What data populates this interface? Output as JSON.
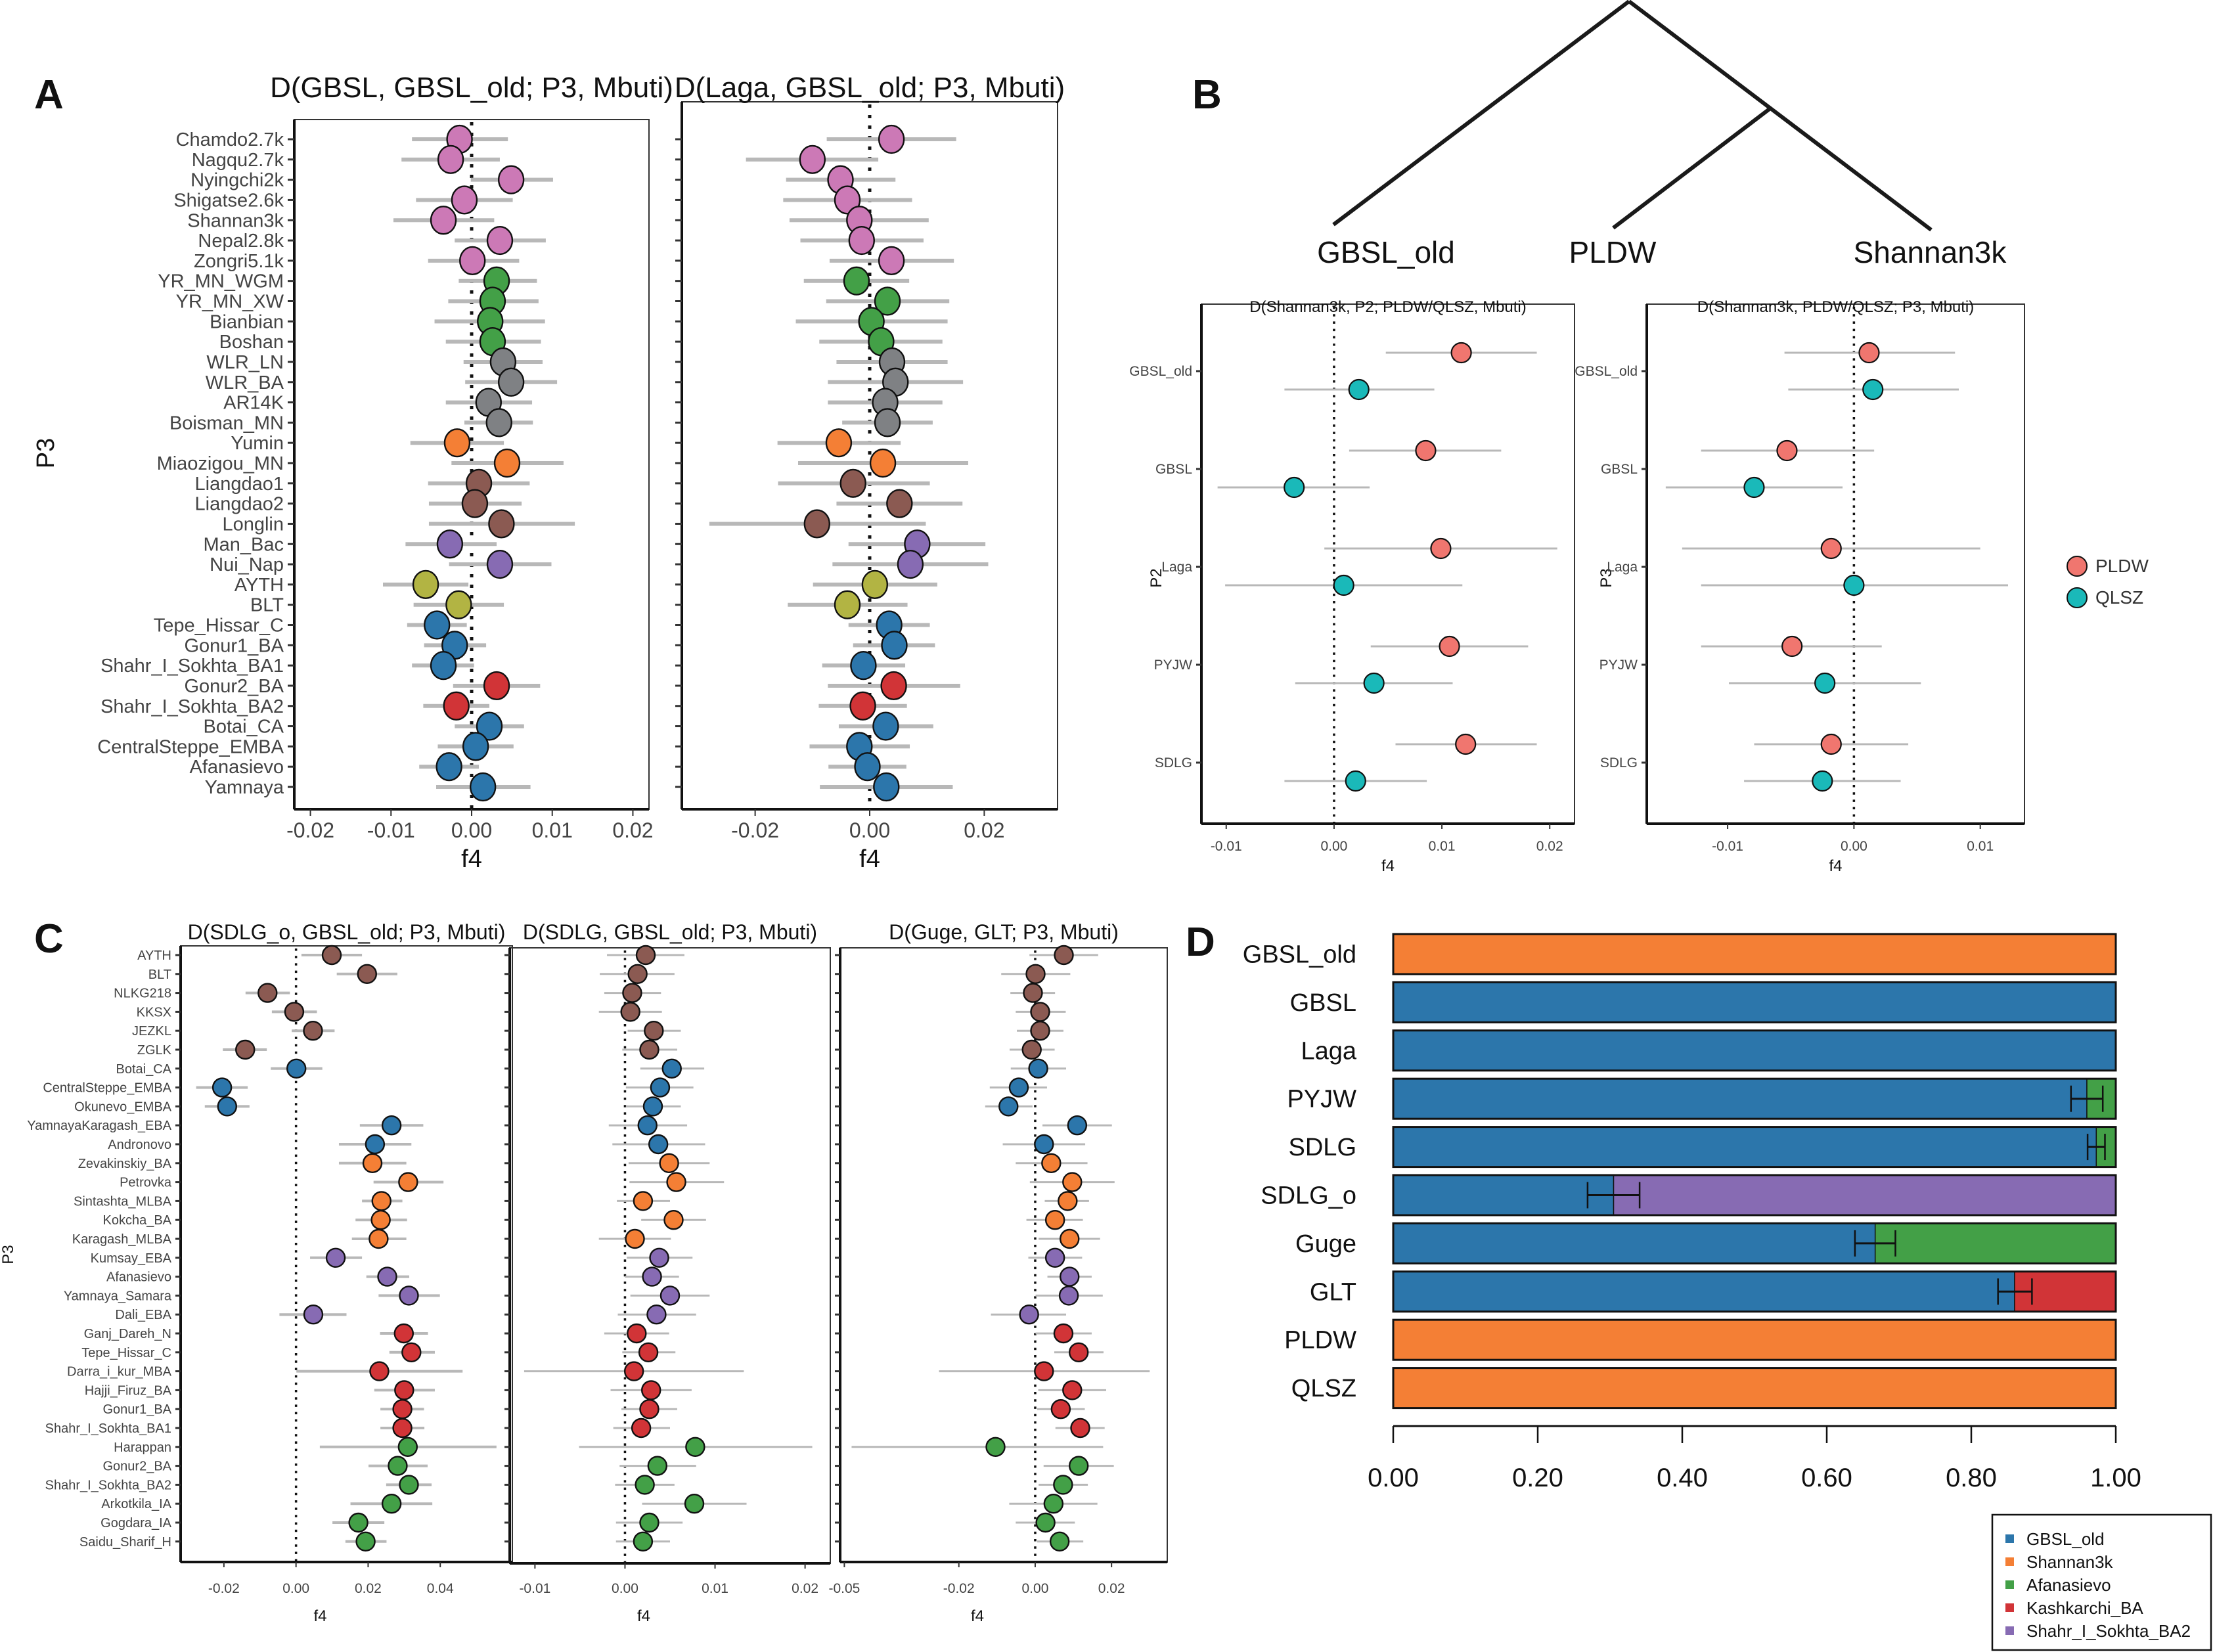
{
  "figure": {
    "panel_letters": [
      "A",
      "B",
      "C",
      "D"
    ],
    "colors": {
      "pink": "#cc79b6",
      "green": "#43a047",
      "grey": "#7f8184",
      "orange": "#f47f35",
      "brown": "#8b5a52",
      "purple": "#876bb3",
      "olive": "#b2b443",
      "blue": "#2c76ab",
      "red": "#d13437",
      "salmon": "#f0766f",
      "teal": "#1ab9b9",
      "errorbar": "#b8b8b8"
    }
  },
  "chart_data": [
    {
      "id": "A1",
      "type": "scatter",
      "title": "D(GBSL, GBSL_old; P3, Mbuti)",
      "xlabel": "f4",
      "ylabel": "P3",
      "xlim": [
        -0.022,
        0.022
      ],
      "xticks": [
        -0.02,
        -0.01,
        0.0,
        0.01,
        0.02
      ],
      "xtick_labels": [
        "-0.02",
        "-0.01",
        "0.00",
        "0.01",
        "0.02"
      ],
      "reference_line": 0,
      "categories": [
        "Chamdo2.7k",
        "Nagqu2.7k",
        "Nyingchi2k",
        "Shigatse2.6k",
        "Shannan3k",
        "Nepal2.8k",
        "Zongri5.1k",
        "YR_MN_WGM",
        "YR_MN_XW",
        "Bianbian",
        "Boshan",
        "WLR_LN",
        "WLR_BA",
        "AR14K",
        "Boisman_MN",
        "Yumin",
        "Miaozigou_MN",
        "Liangdao1",
        "Liangdao2",
        "Longlin",
        "Man_Bac",
        "Nui_Nap",
        "AYTH",
        "BLT",
        "Tepe_Hissar_C",
        "Gonur1_BA",
        "Shahr_I_Sokhta_BA1",
        "Gonur2_BA",
        "Shahr_I_Sokhta_BA2",
        "Botai_CA",
        "CentralSteppe_EMBA",
        "Afanasievo",
        "Yamnaya"
      ],
      "groups": [
        "pink",
        "pink",
        "pink",
        "pink",
        "pink",
        "pink",
        "pink",
        "green",
        "green",
        "green",
        "green",
        "grey",
        "grey",
        "grey",
        "grey",
        "orange",
        "orange",
        "brown",
        "brown",
        "brown",
        "purple",
        "purple",
        "olive",
        "olive",
        "blue",
        "blue",
        "blue",
        "red",
        "red",
        "blue",
        "blue",
        "blue",
        "blue"
      ],
      "values": [
        -0.0015,
        -0.0026,
        0.0049,
        -0.0009,
        -0.0035,
        0.0035,
        0.0001,
        0.0031,
        0.0026,
        0.0023,
        0.0026,
        0.0039,
        0.0049,
        0.0021,
        0.0034,
        -0.0018,
        0.0044,
        0.0009,
        0.0004,
        0.0037,
        -0.0027,
        0.0035,
        -0.0057,
        -0.0016,
        -0.0043,
        -0.0021,
        -0.0035,
        0.0031,
        -0.0019,
        0.0022,
        0.0005,
        -0.0028,
        0.0014
      ],
      "ci_low": [
        -0.0074,
        -0.0087,
        -0.0001,
        -0.0069,
        -0.0097,
        -0.0021,
        -0.0054,
        -0.0016,
        -0.0029,
        -0.0046,
        -0.0032,
        -0.001,
        -0.0008,
        -0.0032,
        -0.0009,
        -0.0076,
        -0.0025,
        -0.0054,
        -0.0053,
        -0.0053,
        -0.0082,
        -0.0028,
        -0.011,
        -0.0072,
        -0.008,
        -0.0059,
        -0.0074,
        -0.0023,
        -0.006,
        -0.0021,
        -0.0042,
        -0.0065,
        -0.0044
      ],
      "ci_high": [
        0.0045,
        0.0035,
        0.0101,
        0.0051,
        0.0028,
        0.0092,
        0.0059,
        0.0081,
        0.0083,
        0.0091,
        0.0086,
        0.0088,
        0.0106,
        0.0075,
        0.0076,
        0.004,
        0.0114,
        0.0072,
        0.0062,
        0.0128,
        0.0031,
        0.0099,
        -0.0004,
        0.004,
        -0.0006,
        0.0018,
        0.0003,
        0.0085,
        0.0022,
        0.0065,
        0.0052,
        0.0009,
        0.0073
      ]
    },
    {
      "id": "A2",
      "type": "scatter",
      "title": "D(Laga, GBSL_old; P3, Mbuti)",
      "xlabel": "f4",
      "xlim": [
        -0.0328,
        0.0328
      ],
      "xticks": [
        -0.02,
        0.0,
        0.02
      ],
      "xtick_labels": [
        "-0.02",
        "0.00",
        "0.02"
      ],
      "reference_line": 0,
      "categories_ref": "A1",
      "values": [
        0.0038,
        -0.01,
        -0.0051,
        -0.0039,
        -0.0018,
        -0.0014,
        0.0038,
        -0.0023,
        0.0031,
        0.0003,
        0.002,
        0.0039,
        0.0045,
        0.0027,
        0.0031,
        -0.0054,
        0.0023,
        -0.0029,
        0.0052,
        -0.0092,
        0.0083,
        0.0071,
        0.0009,
        -0.0039,
        0.0034,
        0.0043,
        -0.0011,
        0.0042,
        -0.0012,
        0.0028,
        -0.0018,
        -0.0004,
        0.0029
      ],
      "ci_low": [
        -0.0075,
        -0.0216,
        -0.0146,
        -0.0151,
        -0.014,
        -0.0121,
        -0.007,
        -0.0115,
        -0.0076,
        -0.0129,
        -0.0088,
        -0.0058,
        -0.0073,
        -0.0073,
        -0.0048,
        -0.0161,
        -0.0125,
        -0.016,
        -0.0058,
        -0.028,
        -0.0037,
        -0.0065,
        -0.0099,
        -0.0143,
        -0.0037,
        -0.0029,
        -0.0083,
        -0.0073,
        -0.0089,
        -0.0054,
        -0.0105,
        -0.0072,
        -0.0087
      ],
      "ci_high": [
        0.0151,
        0.0015,
        0.0045,
        0.0074,
        0.0103,
        0.0094,
        0.0147,
        0.0069,
        0.0139,
        0.0136,
        0.0127,
        0.0136,
        0.0163,
        0.0127,
        0.011,
        0.0054,
        0.0172,
        0.0105,
        0.0162,
        0.0098,
        0.0202,
        0.0207,
        0.0118,
        0.0066,
        0.0105,
        0.0114,
        0.0062,
        0.0158,
        0.0065,
        0.0111,
        0.007,
        0.0064,
        0.0145
      ]
    },
    {
      "id": "B1",
      "type": "scatter",
      "title": "D(Shannan3k, P2; PLDW/QLSZ, Mbuti)",
      "xlabel": "f4",
      "ylabel": "P2",
      "xlim": [
        -0.0123,
        0.0223
      ],
      "xticks": [
        -0.01,
        0.0,
        0.01,
        0.02
      ],
      "xtick_labels": [
        "-0.01",
        "0.00",
        "0.01",
        "0.02"
      ],
      "reference_line": 0,
      "categories": [
        "GBSL_old",
        "GBSL",
        "Laga",
        "PYJW",
        "SDLG"
      ],
      "series": [
        {
          "name": "PLDW",
          "color": "salmon",
          "values": [
            0.0118,
            0.0085,
            0.0099,
            0.0107,
            0.0122
          ],
          "ci_low": [
            0.0048,
            0.0014,
            -0.0009,
            0.0034,
            0.0057
          ],
          "ci_high": [
            0.0188,
            0.0155,
            0.0207,
            0.018,
            0.0188
          ]
        },
        {
          "name": "QLSZ",
          "color": "teal",
          "values": [
            0.0023,
            -0.0037,
            0.0009,
            0.0037,
            0.002
          ],
          "ci_low": [
            -0.0046,
            -0.0108,
            -0.0101,
            -0.0036,
            -0.0046
          ],
          "ci_high": [
            0.0093,
            0.0033,
            0.0119,
            0.011,
            0.0086
          ]
        }
      ]
    },
    {
      "id": "B2",
      "type": "scatter",
      "title": "D(Shannan3k, PLDW/QLSZ; P3, Mbuti)",
      "xlabel": "f4",
      "ylabel": "P3",
      "xlim": [
        -0.0164,
        0.0135
      ],
      "xticks": [
        -0.01,
        0.0,
        0.01
      ],
      "xtick_labels": [
        "-0.01",
        "0.00",
        "0.01"
      ],
      "reference_line": 0,
      "categories": [
        "GBSL_old",
        "GBSL",
        "Laga",
        "PYJW",
        "SDLG"
      ],
      "legend": {
        "position": "right",
        "entries": [
          "PLDW",
          "QLSZ"
        ]
      },
      "series": [
        {
          "name": "PLDW",
          "color": "salmon",
          "values": [
            0.0012,
            -0.0053,
            -0.0018,
            -0.0049,
            -0.0018
          ],
          "ci_low": [
            -0.0055,
            -0.0121,
            -0.0136,
            -0.0121,
            -0.0079
          ],
          "ci_high": [
            0.008,
            0.0016,
            0.01,
            0.0022,
            0.0043
          ]
        },
        {
          "name": "QLSZ",
          "color": "teal",
          "values": [
            0.0015,
            -0.0079,
            0.0,
            -0.0023,
            -0.0025
          ],
          "ci_low": [
            -0.0052,
            -0.0149,
            -0.0121,
            -0.0099,
            -0.0087
          ],
          "ci_high": [
            0.0083,
            -0.0009,
            0.0122,
            0.0053,
            0.0037
          ]
        }
      ]
    },
    {
      "id": "B_tree",
      "type": "tree",
      "leaves": [
        "GBSL_old",
        "PLDW",
        "Shannan3k"
      ],
      "topology": "(GBSL_old,(PLDW,Shannan3k))"
    },
    {
      "id": "C1",
      "type": "scatter",
      "title": "D(SDLG_o, GBSL_old; P3, Mbuti)",
      "xlabel": "f4",
      "ylabel": "P3",
      "xlim": [
        -0.032,
        0.06
      ],
      "xticks": [
        -0.02,
        0.0,
        0.02,
        0.04
      ],
      "xtick_labels": [
        "-0.02",
        "0.00",
        "0.02",
        "0.04"
      ],
      "reference_line": 0,
      "categories": [
        "AYTH",
        "BLT",
        "NLKG218",
        "KKSX",
        "JEZKL",
        "ZGLK",
        "Botai_CA",
        "CentralSteppe_EMBA",
        "Okunevo_EMBA",
        "YamnayaKaragash_EBA",
        "Andronovo",
        "Zevakinskiy_BA",
        "Petrovka",
        "Sintashta_MLBA",
        "Kokcha_BA",
        "Karagash_MLBA",
        "Kumsay_EBA",
        "Afanasievo",
        "Yamnaya_Samara",
        "Dali_EBA",
        "Ganj_Dareh_N",
        "Tepe_Hissar_C",
        "Darra_i_kur_MBA",
        "Hajji_Firuz_BA",
        "Gonur1_BA",
        "Shahr_I_Sokhta_BA1",
        "Harappan",
        "Gonur2_BA",
        "Shahr_I_Sokhta_BA2",
        "Arkotkila_IA",
        "Gogdara_IA",
        "Saidu_Sharif_H"
      ],
      "groups": [
        "brown",
        "brown",
        "brown",
        "brown",
        "brown",
        "brown",
        "blue",
        "blue",
        "blue",
        "blue",
        "blue",
        "orange",
        "orange",
        "orange",
        "orange",
        "orange",
        "purple",
        "purple",
        "purple",
        "purple",
        "red",
        "red",
        "red",
        "red",
        "red",
        "red",
        "green",
        "green",
        "green",
        "green",
        "green",
        "green"
      ],
      "values": [
        0.0099,
        0.0197,
        -0.0079,
        -0.0005,
        0.0047,
        -0.0141,
        0.0001,
        -0.0205,
        -0.0191,
        0.0265,
        0.0219,
        0.0212,
        0.0311,
        0.0237,
        0.0235,
        0.0229,
        0.011,
        0.0253,
        0.0313,
        0.0048,
        0.0299,
        0.032,
        0.0231,
        0.03,
        0.0295,
        0.0295,
        0.031,
        0.0282,
        0.0313,
        0.0265,
        0.0173,
        0.0193
      ],
      "ci_low": [
        0.0015,
        0.0113,
        -0.014,
        -0.0067,
        -0.0012,
        -0.0203,
        -0.007,
        -0.0277,
        -0.0253,
        0.0177,
        0.0119,
        0.0119,
        0.0215,
        0.0183,
        0.0165,
        0.0155,
        0.0039,
        0.0195,
        0.0229,
        -0.0046,
        0.0233,
        0.0259,
        0.0001,
        0.0217,
        0.0234,
        0.0234,
        0.0066,
        0.0201,
        0.025,
        0.0151,
        0.0101,
        0.0137
      ],
      "ci_high": [
        0.0183,
        0.0281,
        -0.0017,
        0.0058,
        0.0107,
        -0.0081,
        0.0073,
        -0.0134,
        -0.0129,
        0.0353,
        0.032,
        0.0306,
        0.0409,
        0.0295,
        0.0308,
        0.0306,
        0.0183,
        0.0314,
        0.0399,
        0.014,
        0.0366,
        0.0385,
        0.0462,
        0.0385,
        0.0355,
        0.0356,
        0.0556,
        0.0365,
        0.0376,
        0.0378,
        0.0245,
        0.0251
      ]
    },
    {
      "id": "C2",
      "type": "scatter",
      "title": "D(SDLG, GBSL_old; P3, Mbuti)",
      "xlabel": "f4",
      "xlim": [
        -0.0128,
        0.0228
      ],
      "xticks": [
        -0.01,
        0.0,
        0.01,
        0.02
      ],
      "xtick_labels": [
        "-0.01",
        "0.00",
        "0.01",
        "0.02"
      ],
      "reference_line": 0,
      "categories_ref": "C1",
      "values": [
        0.0023,
        0.0014,
        0.0008,
        0.0006,
        0.0032,
        0.0027,
        0.0052,
        0.0039,
        0.0031,
        0.0025,
        0.0037,
        0.0049,
        0.0057,
        0.002,
        0.0054,
        0.0011,
        0.0038,
        0.003,
        0.005,
        0.0035,
        0.0013,
        0.0026,
        0.001,
        0.0029,
        0.0027,
        0.0018,
        0.0078,
        0.0036,
        0.0022,
        0.0077,
        0.0027,
        0.002
      ],
      "ci_low": [
        -0.002,
        -0.0028,
        -0.0023,
        -0.0029,
        0.0003,
        -0.0003,
        0.0017,
        0.0001,
        0.0001,
        -0.0018,
        -0.0014,
        0.0004,
        0.0005,
        -0.0009,
        0.0018,
        -0.0029,
        0.0002,
        0.0,
        0.0006,
        -0.0008,
        -0.0023,
        -0.0003,
        -0.0112,
        -0.0016,
        -0.0004,
        -0.0013,
        -0.0051,
        -0.0006,
        -0.0011,
        0.0019,
        -0.001,
        -0.001
      ],
      "ci_high": [
        0.0066,
        0.0055,
        0.004,
        0.0041,
        0.0062,
        0.0058,
        0.0088,
        0.0076,
        0.0062,
        0.0069,
        0.0089,
        0.0094,
        0.011,
        0.005,
        0.009,
        0.0051,
        0.0075,
        0.006,
        0.0094,
        0.0079,
        0.0049,
        0.0056,
        0.0132,
        0.0074,
        0.0058,
        0.005,
        0.0208,
        0.0079,
        0.0055,
        0.0135,
        0.0064,
        0.005
      ]
    },
    {
      "id": "C3",
      "type": "scatter",
      "title": "D(Guge, GLT; P3, Mbuti)",
      "xlabel": "f4",
      "xlim": [
        -0.0511,
        0.0346
      ],
      "xticks": [
        -0.05,
        -0.02,
        0.0,
        0.02
      ],
      "xtick_labels": [
        "-0.05",
        "-0.02",
        "0.00",
        "0.02"
      ],
      "reference_line": 0,
      "categories_ref": "C1",
      "values": [
        0.0075,
        0.0001,
        -0.0006,
        0.0013,
        0.0013,
        -0.0009,
        0.0008,
        -0.0043,
        -0.007,
        0.011,
        0.0023,
        0.0042,
        0.0097,
        0.0085,
        0.0052,
        0.009,
        0.0052,
        0.009,
        0.0088,
        -0.0016,
        0.0074,
        0.0114,
        0.0023,
        0.0097,
        0.0067,
        0.0118,
        -0.0104,
        0.0114,
        0.0073,
        0.0048,
        0.0027,
        0.0064
      ],
      "ci_low": [
        -0.0015,
        -0.0089,
        -0.0065,
        -0.0051,
        -0.0048,
        -0.0067,
        -0.0064,
        -0.0119,
        -0.0131,
        0.0019,
        -0.0085,
        -0.0051,
        -0.0014,
        0.0025,
        -0.0023,
        0.0009,
        -0.0018,
        0.0032,
        0.0001,
        -0.0116,
        0.0001,
        0.005,
        -0.0252,
        0.0008,
        0.0005,
        0.0053,
        -0.0481,
        0.0022,
        0.0009,
        -0.0068,
        -0.0051,
        0.0005
      ],
      "ci_high": [
        0.0165,
        0.0092,
        0.0052,
        0.008,
        0.0074,
        0.0051,
        0.0081,
        0.0031,
        -0.0007,
        0.0201,
        0.0131,
        0.0137,
        0.0208,
        0.0141,
        0.0125,
        0.017,
        0.0123,
        0.0148,
        0.0177,
        0.0081,
        0.0148,
        0.0179,
        0.03,
        0.0186,
        0.013,
        0.0182,
        0.0178,
        0.0206,
        0.0138,
        0.0163,
        0.0104,
        0.0126
      ]
    },
    {
      "id": "D",
      "type": "bar",
      "stacked": true,
      "orientation": "horizontal",
      "xlim": [
        0,
        1
      ],
      "xticks": [
        0,
        0.2,
        0.4,
        0.6,
        0.8,
        1.0
      ],
      "xtick_labels": [
        "0.00",
        "0.20",
        "0.40",
        "0.60",
        "0.80",
        "1.00"
      ],
      "categories": [
        "GBSL_old",
        "GBSL",
        "Laga",
        "PYJW",
        "SDLG",
        "SDLG_o",
        "Guge",
        "GLT",
        "PLDW",
        "QLSZ"
      ],
      "legend": {
        "position": "bottom-right",
        "entries": [
          "GBSL_old",
          "Shannan3k",
          "Afanasievo",
          "Kashkarchi_BA",
          "Shahr_I_Sokhta_BA2"
        ]
      },
      "series": [
        {
          "name": "GBSL_old",
          "color": "blue",
          "values": [
            0,
            1,
            1,
            0.96,
            0.973,
            0.305,
            0.667,
            0.86,
            0,
            0
          ]
        },
        {
          "name": "Shannan3k",
          "color": "orange",
          "values": [
            1,
            0,
            0,
            0,
            0,
            0,
            0,
            0,
            1,
            1
          ]
        },
        {
          "name": "Afanasievo",
          "color": "green",
          "values": [
            0,
            0,
            0,
            0.04,
            0.027,
            0,
            0.333,
            0,
            0,
            0
          ]
        },
        {
          "name": "Kashkarchi_BA",
          "color": "red",
          "values": [
            0,
            0,
            0,
            0,
            0,
            0,
            0,
            0.14,
            0,
            0
          ]
        },
        {
          "name": "Shahr_I_Sokhta_BA2",
          "color": "purple",
          "values": [
            0,
            0,
            0,
            0,
            0,
            0.695,
            0,
            0,
            0,
            0
          ]
        }
      ],
      "error_bars": [
        null,
        null,
        null,
        [
          0.938,
          0.982
        ],
        [
          0.961,
          0.985
        ],
        [
          0.269,
          0.341
        ],
        [
          0.639,
          0.695
        ],
        [
          0.837,
          0.884
        ],
        null,
        null
      ]
    }
  ]
}
